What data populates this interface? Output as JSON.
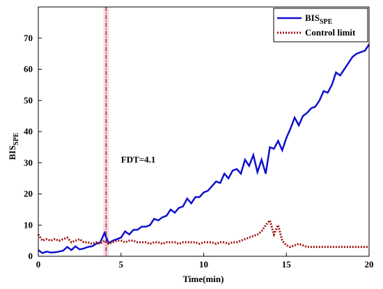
{
  "chart_data": {
    "type": "line",
    "xlabel": "Time(min)",
    "ylabel": "BIS",
    "ylabel_sub": "SPE",
    "xlim": [
      0,
      20
    ],
    "xticks": [
      0,
      5,
      10,
      15,
      20
    ],
    "ylim": [
      0,
      80
    ],
    "yticks": [
      0,
      10,
      20,
      30,
      40,
      50,
      60,
      70
    ],
    "legend": "upper right",
    "vline_x": 4.1,
    "vline_color": "#8b3a1a",
    "annotation": "FDT=4.1",
    "x": [
      0,
      0.25,
      0.5,
      0.75,
      1,
      1.25,
      1.5,
      1.75,
      2,
      2.25,
      2.5,
      2.75,
      3,
      3.25,
      3.5,
      3.75,
      4,
      4.25,
      4.5,
      4.75,
      5,
      5.25,
      5.5,
      5.75,
      6,
      6.25,
      6.5,
      6.75,
      7,
      7.25,
      7.5,
      7.75,
      8,
      8.25,
      8.5,
      8.75,
      9,
      9.25,
      9.5,
      9.75,
      10,
      10.25,
      10.5,
      10.75,
      11,
      11.25,
      11.5,
      11.75,
      12,
      12.25,
      12.5,
      12.75,
      13,
      13.25,
      13.5,
      13.75,
      14,
      14.25,
      14.5,
      14.75,
      15,
      15.25,
      15.5,
      15.75,
      16,
      16.25,
      16.5,
      16.75,
      17,
      17.25,
      17.5,
      17.75,
      18,
      18.25,
      18.5,
      18.75,
      19,
      19.25,
      19.5,
      19.75,
      20
    ],
    "series": [
      {
        "name": "BIS",
        "name_sub": "SPE",
        "color": "#1010d0",
        "style": "solid",
        "values": [
          2,
          1,
          1.5,
          1.2,
          1.3,
          1.5,
          1.8,
          3,
          2,
          3.2,
          2.2,
          2.5,
          3,
          3.2,
          4,
          4.5,
          7.5,
          4.2,
          5,
          5.5,
          6,
          8,
          7,
          8.5,
          8.5,
          9.5,
          9.5,
          10,
          12,
          11.5,
          12.5,
          13,
          15,
          14,
          15.5,
          16,
          18.5,
          17,
          19,
          19,
          20.5,
          21,
          22.5,
          24,
          23.5,
          26.5,
          25,
          27.5,
          28,
          26.5,
          31,
          29,
          32.5,
          27,
          31,
          26.5,
          35,
          34.5,
          37,
          34,
          38,
          41,
          44.5,
          42,
          45,
          46,
          47.5,
          48,
          50,
          53,
          52.5,
          55,
          59,
          58,
          60,
          62,
          64,
          65,
          65.5,
          66,
          68
        ]
      },
      {
        "name": "Control limit",
        "color": "#a01010",
        "style": "dotted",
        "values": [
          7,
          5,
          5.5,
          5,
          5.5,
          5,
          5.5,
          6,
          4.5,
          5,
          5.5,
          4.5,
          4.5,
          4,
          4.5,
          4,
          5,
          4,
          4.5,
          5,
          5,
          4.5,
          5,
          5,
          4.5,
          4.5,
          4.5,
          4,
          4.5,
          4.5,
          4,
          4.5,
          4.5,
          4.5,
          4,
          4.5,
          4.5,
          4.5,
          4.5,
          4,
          4.5,
          4.5,
          4.5,
          4,
          4.5,
          4.5,
          4,
          4.5,
          4.5,
          5,
          5.5,
          6,
          6.5,
          7,
          8,
          10,
          11.5,
          7,
          10,
          5,
          3.5,
          3,
          3.5,
          4,
          3.5,
          3,
          3,
          3,
          3,
          3,
          3,
          3,
          3,
          3,
          3,
          3,
          3,
          3,
          3,
          3,
          3
        ]
      }
    ]
  }
}
